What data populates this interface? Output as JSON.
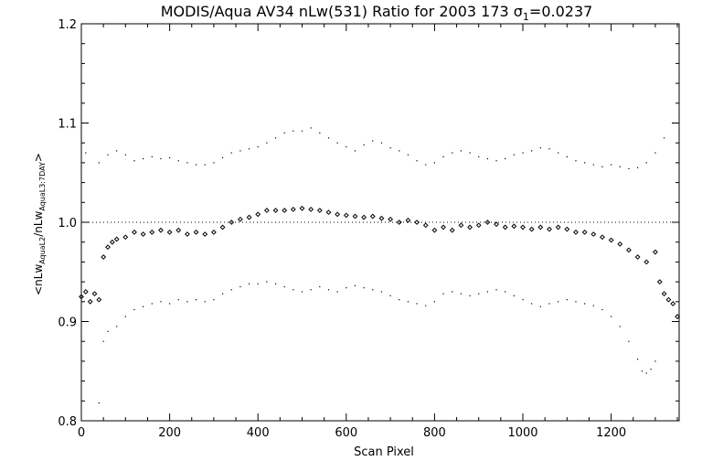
{
  "chart_data": {
    "type": "scatter",
    "title": "MODIS/Aqua AV34 nLw(531) Ratio for 2003 173 σ",
    "title_subscript": "1",
    "title_suffix": "=0.0237",
    "xlabel": "Scan Pixel",
    "ylabel_prefix": "<nLw",
    "ylabel_sub1": "AquaL2",
    "ylabel_mid": "/nLw",
    "ylabel_sub2": "AquaL3:7DAY",
    "ylabel_suffix": ">",
    "xlim": [
      0,
      1354
    ],
    "ylim": [
      0.8,
      1.2
    ],
    "x_ticks": [
      0,
      200,
      400,
      600,
      800,
      1000,
      1200
    ],
    "x_tick_labels": [
      "0",
      "200",
      "400",
      "600",
      "800",
      "1000",
      "1200"
    ],
    "y_ticks": [
      0.8,
      0.9,
      1.0,
      1.1,
      1.2
    ],
    "y_tick_labels": [
      "0.8",
      "0.9",
      "1.0",
      "1.1",
      "1.2"
    ],
    "reference_line_y": 1.0,
    "grid": false,
    "series": [
      {
        "style": "diamond-markers",
        "color": "#000000",
        "values_xy": [
          [
            0,
            0.925
          ],
          [
            10,
            0.93
          ],
          [
            20,
            0.92
          ],
          [
            30,
            0.928
          ],
          [
            40,
            0.922
          ],
          [
            50,
            0.965
          ],
          [
            60,
            0.975
          ],
          [
            70,
            0.98
          ],
          [
            80,
            0.983
          ],
          [
            100,
            0.985
          ],
          [
            120,
            0.99
          ],
          [
            140,
            0.988
          ],
          [
            160,
            0.99
          ],
          [
            180,
            0.992
          ],
          [
            200,
            0.99
          ],
          [
            220,
            0.992
          ],
          [
            240,
            0.988
          ],
          [
            260,
            0.99
          ],
          [
            280,
            0.988
          ],
          [
            300,
            0.99
          ],
          [
            320,
            0.995
          ],
          [
            340,
            1.0
          ],
          [
            360,
            1.003
          ],
          [
            380,
            1.005
          ],
          [
            400,
            1.008
          ],
          [
            420,
            1.012
          ],
          [
            440,
            1.012
          ],
          [
            460,
            1.012
          ],
          [
            480,
            1.013
          ],
          [
            500,
            1.014
          ],
          [
            520,
            1.013
          ],
          [
            540,
            1.012
          ],
          [
            560,
            1.01
          ],
          [
            580,
            1.008
          ],
          [
            600,
            1.007
          ],
          [
            620,
            1.006
          ],
          [
            640,
            1.005
          ],
          [
            660,
            1.006
          ],
          [
            680,
            1.004
          ],
          [
            700,
            1.003
          ],
          [
            720,
            1.0
          ],
          [
            740,
            1.002
          ],
          [
            760,
            1.0
          ],
          [
            780,
            0.997
          ],
          [
            800,
            0.992
          ],
          [
            820,
            0.995
          ],
          [
            840,
            0.992
          ],
          [
            860,
            0.997
          ],
          [
            880,
            0.995
          ],
          [
            900,
            0.997
          ],
          [
            920,
            1.0
          ],
          [
            940,
            0.998
          ],
          [
            960,
            0.995
          ],
          [
            980,
            0.996
          ],
          [
            1000,
            0.995
          ],
          [
            1020,
            0.993
          ],
          [
            1040,
            0.995
          ],
          [
            1060,
            0.993
          ],
          [
            1080,
            0.995
          ],
          [
            1100,
            0.993
          ],
          [
            1120,
            0.99
          ],
          [
            1140,
            0.99
          ],
          [
            1160,
            0.988
          ],
          [
            1180,
            0.985
          ],
          [
            1200,
            0.982
          ],
          [
            1220,
            0.978
          ],
          [
            1240,
            0.972
          ],
          [
            1260,
            0.965
          ],
          [
            1280,
            0.96
          ],
          [
            1300,
            0.97
          ],
          [
            1310,
            0.94
          ],
          [
            1320,
            0.928
          ],
          [
            1330,
            0.922
          ],
          [
            1340,
            0.918
          ],
          [
            1350,
            0.905
          ]
        ]
      },
      {
        "style": "dotted-upper-envelope",
        "color": "#000000",
        "values_xy": [
          [
            10,
            1.07
          ],
          [
            40,
            1.06
          ],
          [
            60,
            1.068
          ],
          [
            80,
            1.072
          ],
          [
            100,
            1.068
          ],
          [
            120,
            1.062
          ],
          [
            140,
            1.064
          ],
          [
            160,
            1.066
          ],
          [
            180,
            1.064
          ],
          [
            200,
            1.065
          ],
          [
            220,
            1.062
          ],
          [
            240,
            1.06
          ],
          [
            260,
            1.058
          ],
          [
            280,
            1.058
          ],
          [
            300,
            1.06
          ],
          [
            320,
            1.065
          ],
          [
            340,
            1.07
          ],
          [
            360,
            1.072
          ],
          [
            380,
            1.074
          ],
          [
            400,
            1.076
          ],
          [
            420,
            1.08
          ],
          [
            440,
            1.085
          ],
          [
            460,
            1.09
          ],
          [
            480,
            1.092
          ],
          [
            500,
            1.092
          ],
          [
            520,
            1.095
          ],
          [
            540,
            1.09
          ],
          [
            560,
            1.085
          ],
          [
            580,
            1.08
          ],
          [
            600,
            1.076
          ],
          [
            620,
            1.072
          ],
          [
            640,
            1.078
          ],
          [
            660,
            1.082
          ],
          [
            680,
            1.08
          ],
          [
            700,
            1.075
          ],
          [
            720,
            1.072
          ],
          [
            740,
            1.068
          ],
          [
            760,
            1.062
          ],
          [
            780,
            1.058
          ],
          [
            800,
            1.06
          ],
          [
            820,
            1.066
          ],
          [
            840,
            1.07
          ],
          [
            860,
            1.072
          ],
          [
            880,
            1.07
          ],
          [
            900,
            1.066
          ],
          [
            920,
            1.064
          ],
          [
            940,
            1.062
          ],
          [
            960,
            1.064
          ],
          [
            980,
            1.068
          ],
          [
            1000,
            1.07
          ],
          [
            1020,
            1.072
          ],
          [
            1040,
            1.075
          ],
          [
            1060,
            1.074
          ],
          [
            1080,
            1.07
          ],
          [
            1100,
            1.066
          ],
          [
            1120,
            1.062
          ],
          [
            1140,
            1.06
          ],
          [
            1160,
            1.058
          ],
          [
            1180,
            1.056
          ],
          [
            1200,
            1.058
          ],
          [
            1220,
            1.056
          ],
          [
            1240,
            1.054
          ],
          [
            1260,
            1.055
          ],
          [
            1280,
            1.06
          ],
          [
            1300,
            1.07
          ],
          [
            1320,
            1.085
          ],
          [
            1340,
            1.1
          ]
        ]
      },
      {
        "style": "dotted-lower-envelope",
        "color": "#000000",
        "values_xy": [
          [
            40,
            0.818
          ],
          [
            50,
            0.88
          ],
          [
            60,
            0.89
          ],
          [
            80,
            0.895
          ],
          [
            100,
            0.905
          ],
          [
            120,
            0.912
          ],
          [
            140,
            0.915
          ],
          [
            160,
            0.918
          ],
          [
            180,
            0.92
          ],
          [
            200,
            0.918
          ],
          [
            220,
            0.922
          ],
          [
            240,
            0.92
          ],
          [
            260,
            0.922
          ],
          [
            280,
            0.92
          ],
          [
            300,
            0.922
          ],
          [
            320,
            0.928
          ],
          [
            340,
            0.932
          ],
          [
            360,
            0.935
          ],
          [
            380,
            0.938
          ],
          [
            400,
            0.938
          ],
          [
            420,
            0.94
          ],
          [
            440,
            0.938
          ],
          [
            460,
            0.935
          ],
          [
            480,
            0.932
          ],
          [
            500,
            0.93
          ],
          [
            520,
            0.932
          ],
          [
            540,
            0.935
          ],
          [
            560,
            0.932
          ],
          [
            580,
            0.93
          ],
          [
            600,
            0.934
          ],
          [
            620,
            0.936
          ],
          [
            640,
            0.934
          ],
          [
            660,
            0.932
          ],
          [
            680,
            0.93
          ],
          [
            700,
            0.926
          ],
          [
            720,
            0.922
          ],
          [
            740,
            0.92
          ],
          [
            760,
            0.918
          ],
          [
            780,
            0.916
          ],
          [
            800,
            0.92
          ],
          [
            820,
            0.928
          ],
          [
            840,
            0.93
          ],
          [
            860,
            0.928
          ],
          [
            880,
            0.926
          ],
          [
            900,
            0.928
          ],
          [
            920,
            0.93
          ],
          [
            940,
            0.932
          ],
          [
            960,
            0.93
          ],
          [
            980,
            0.926
          ],
          [
            1000,
            0.922
          ],
          [
            1020,
            0.918
          ],
          [
            1040,
            0.915
          ],
          [
            1060,
            0.918
          ],
          [
            1080,
            0.92
          ],
          [
            1100,
            0.922
          ],
          [
            1120,
            0.92
          ],
          [
            1140,
            0.918
          ],
          [
            1160,
            0.916
          ],
          [
            1180,
            0.912
          ],
          [
            1200,
            0.905
          ],
          [
            1220,
            0.895
          ],
          [
            1240,
            0.88
          ],
          [
            1260,
            0.862
          ],
          [
            1270,
            0.85
          ],
          [
            1280,
            0.848
          ],
          [
            1290,
            0.852
          ],
          [
            1300,
            0.86
          ]
        ]
      }
    ]
  }
}
